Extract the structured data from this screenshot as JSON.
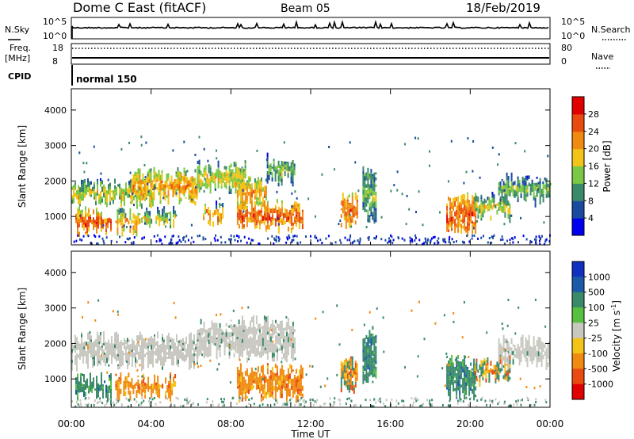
{
  "header": {
    "station": "Dome C East (fitACF)",
    "beam": "Beam 05",
    "date": "18/Feb/2019"
  },
  "status_panels": {
    "nsky_label": "N.Sky",
    "nsearch_label": "N.Search",
    "nsky_ticks": [
      "10^5",
      "10^0"
    ],
    "nsearch_ticks": [
      "10^5",
      "10^0"
    ],
    "freq_label_1": "Freq.",
    "freq_label_2": "[MHz]",
    "freq_ticks": [
      "18",
      "8"
    ],
    "nave_label": "Nave",
    "nave_ticks": [
      "80",
      "0"
    ],
    "cpid_label": "CPID",
    "cpid_value": "normal 150"
  },
  "chart_data": [
    {
      "type": "heatmap",
      "name": "power-panel",
      "xlabel": "Time UT",
      "ylabel": "Slant Range [km]",
      "xlim_hours": [
        0,
        24
      ],
      "ylim": [
        200,
        4600
      ],
      "yticks": [
        1000,
        2000,
        3000,
        4000
      ],
      "xtick_labels": [
        "00:00",
        "04:00",
        "08:00",
        "12:00",
        "16:00",
        "20:00",
        "00:00"
      ],
      "colorbar": {
        "label": "Power [dB]",
        "ticks": [
          "4",
          "8",
          "12",
          "16",
          "20",
          "24",
          "28"
        ],
        "colors": [
          "#0000ee",
          "#1a4aa0",
          "#3a8a6a",
          "#7ac843",
          "#f2c418",
          "#f08a10",
          "#e84a10",
          "#e00000"
        ]
      },
      "echo_regions": [
        {
          "t": [
            0.0,
            4.1
          ],
          "r": [
            1450,
            1900
          ],
          "level": 4
        },
        {
          "t": [
            3.0,
            6.3
          ],
          "r": [
            1600,
            2200
          ],
          "level": 5
        },
        {
          "t": [
            6.3,
            8.7
          ],
          "r": [
            1850,
            2400
          ],
          "level": 4
        },
        {
          "t": [
            8.3,
            9.8
          ],
          "r": [
            1400,
            2000
          ],
          "level": 5
        },
        {
          "t": [
            9.8,
            11.2
          ],
          "r": [
            2100,
            2600
          ],
          "level": 3
        },
        {
          "t": [
            8.3,
            11.6
          ],
          "r": [
            750,
            1300
          ],
          "level": 6
        },
        {
          "t": [
            0.2,
            2.0
          ],
          "r": [
            700,
            1100
          ],
          "level": 6
        },
        {
          "t": [
            2.2,
            3.4
          ],
          "r": [
            700,
            1050
          ],
          "level": 5
        },
        {
          "t": [
            3.5,
            5.2
          ],
          "r": [
            800,
            1100
          ],
          "level": 4
        },
        {
          "t": [
            6.6,
            7.6
          ],
          "r": [
            950,
            1250
          ],
          "level": 5
        },
        {
          "t": [
            13.5,
            14.3
          ],
          "r": [
            900,
            1500
          ],
          "level": 6
        },
        {
          "t": [
            14.6,
            15.3
          ],
          "r": [
            1000,
            2300
          ],
          "level": 3
        },
        {
          "t": [
            18.8,
            20.3
          ],
          "r": [
            700,
            1500
          ],
          "level": 6
        },
        {
          "t": [
            20.2,
            22.0
          ],
          "r": [
            1100,
            1500
          ],
          "level": 4
        },
        {
          "t": [
            21.4,
            24.0
          ],
          "r": [
            1550,
            2050
          ],
          "level": 3
        }
      ],
      "ground_scatter_band_km": [
        200,
        500
      ]
    },
    {
      "type": "heatmap",
      "name": "velocity-panel",
      "xlabel": "Time UT",
      "ylabel": "Slant Range [km]",
      "xlim_hours": [
        0,
        24
      ],
      "ylim": [
        200,
        4600
      ],
      "yticks": [
        1000,
        2000,
        3000,
        4000
      ],
      "xtick_labels": [
        "00:00",
        "04:00",
        "08:00",
        "12:00",
        "16:00",
        "20:00",
        "00:00"
      ],
      "colorbar": {
        "label": "Velocity [m s^-1]",
        "ticks": [
          "1000",
          "500",
          "100",
          "25",
          "-25",
          "-100",
          "-500",
          "-1000"
        ],
        "colors": [
          "#1030c0",
          "#1a5aa8",
          "#3a8a6a",
          "#58c040",
          "#c8c8c0",
          "#f2c418",
          "#f08a10",
          "#e84a10",
          "#e00000"
        ]
      },
      "echo_regions": [
        {
          "t": [
            0.0,
            6.3
          ],
          "r": [
            1500,
            2150
          ],
          "kind": "grey"
        },
        {
          "t": [
            6.3,
            8.7
          ],
          "r": [
            1850,
            2500
          ],
          "kind": "grey"
        },
        {
          "t": [
            8.3,
            11.2
          ],
          "r": [
            1700,
            2600
          ],
          "kind": "grey"
        },
        {
          "t": [
            0.2,
            2.0
          ],
          "r": [
            600,
            1000
          ],
          "kind": "green"
        },
        {
          "t": [
            2.2,
            3.4
          ],
          "r": [
            650,
            1000
          ],
          "kind": "orange"
        },
        {
          "t": [
            3.5,
            5.2
          ],
          "r": [
            650,
            1000
          ],
          "kind": "orange"
        },
        {
          "t": [
            8.3,
            11.6
          ],
          "r": [
            600,
            1250
          ],
          "kind": "orange"
        },
        {
          "t": [
            13.5,
            14.3
          ],
          "r": [
            800,
            1500
          ],
          "kind": "mixed"
        },
        {
          "t": [
            14.6,
            15.3
          ],
          "r": [
            1000,
            2300
          ],
          "kind": "green"
        },
        {
          "t": [
            18.8,
            20.3
          ],
          "r": [
            600,
            1500
          ],
          "kind": "green"
        },
        {
          "t": [
            20.2,
            22.0
          ],
          "r": [
            1050,
            1500
          ],
          "kind": "mixed"
        },
        {
          "t": [
            21.4,
            24.0
          ],
          "r": [
            1550,
            2050
          ],
          "kind": "grey"
        }
      ]
    }
  ]
}
